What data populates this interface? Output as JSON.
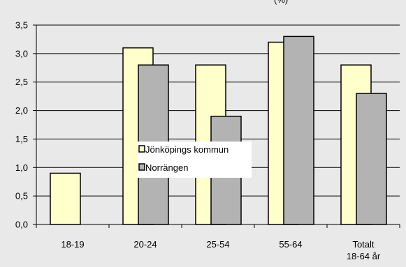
{
  "chart_data": {
    "type": "bar",
    "title_fragment": "(%)",
    "categories": [
      [
        "18-19"
      ],
      [
        "20-24"
      ],
      [
        "25-54"
      ],
      [
        "55-64"
      ],
      [
        "Totalt",
        "18-64 år"
      ]
    ],
    "series": [
      {
        "name": "Jönköpings kommun",
        "color": "#ffffcc",
        "values": [
          0.9,
          3.1,
          2.8,
          3.2,
          2.8
        ]
      },
      {
        "name": "Norrängen",
        "color": "#b3b3b3",
        "values": [
          0.0,
          2.8,
          1.9,
          3.3,
          2.3
        ]
      }
    ],
    "y_ticks": [
      "0,0",
      "0,5",
      "1,0",
      "1,5",
      "2,0",
      "2,5",
      "3,0",
      "3,5"
    ],
    "ylim": [
      0,
      3.5
    ],
    "grid": true,
    "legend_placement": "center"
  }
}
